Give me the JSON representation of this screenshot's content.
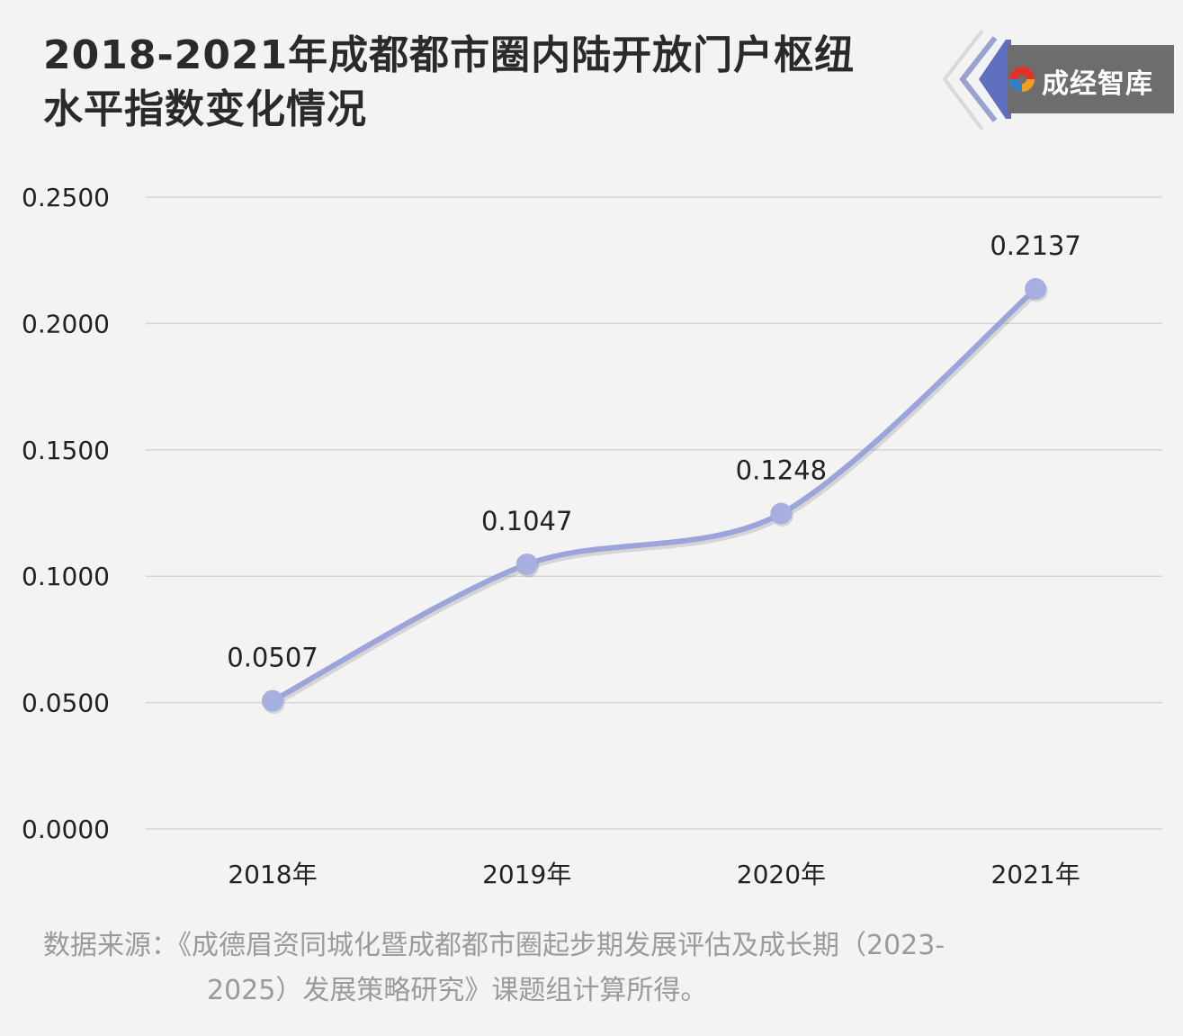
{
  "header": {
    "title_line1": "2018-2021年成都都市圈内陆开放门户枢纽",
    "title_line2": "水平指数变化情况",
    "logo_text": "成经智库",
    "logo_icon": "chengjing-swirl-icon"
  },
  "colors": {
    "line": "#9ca5db",
    "point": "#a7aee0",
    "grid": "#d6d6d6",
    "logo_bg": "#6d6d6d",
    "logo_accent": "#5f6fc0"
  },
  "chart_data": {
    "type": "line",
    "title": "2018-2021年成都都市圈内陆开放门户枢纽水平指数变化情况",
    "categories": [
      "2018年",
      "2019年",
      "2020年",
      "2021年"
    ],
    "series": [
      {
        "values": [
          0.0507,
          0.1047,
          0.1248,
          0.2137
        ]
      }
    ],
    "data_labels": [
      "0.0507",
      "0.1047",
      "0.1248",
      "0.2137"
    ],
    "y_ticks": [
      "0.0000",
      "0.0500",
      "0.1000",
      "0.1500",
      "0.2000",
      "0.2500"
    ],
    "ylim": [
      0,
      0.25
    ],
    "grid": true,
    "smooth": true
  },
  "footer": {
    "source_line1": "数据来源：《成德眉资同城化暨成都都市圈起步期发展评估及成长期（2023-",
    "source_line2": "2025）发展策略研究》课题组计算所得。"
  }
}
